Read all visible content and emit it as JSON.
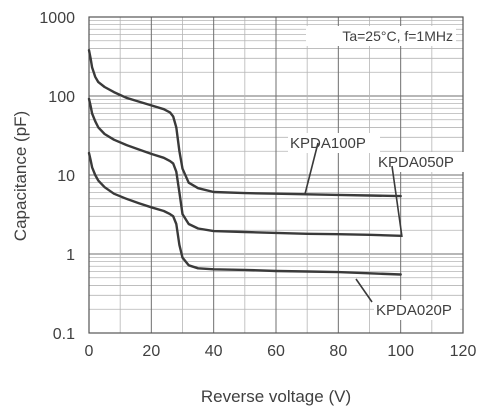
{
  "chart_data": {
    "type": "line",
    "scale": {
      "y": "log10",
      "x": "linear"
    },
    "xlabel": "Reverse voltage  (V)",
    "ylabel": "Capacitance  (pF)",
    "xlim": [
      0,
      120
    ],
    "ylim": [
      0.1,
      1000
    ],
    "x_ticks": [
      "0",
      "20",
      "40",
      "60",
      "80",
      "100",
      "120"
    ],
    "y_ticks": [
      "0.1",
      "1",
      "10",
      "100",
      "1000"
    ],
    "grid": true,
    "annotation": "Ta=25°C, f=1MHz",
    "series": [
      {
        "name": "KPDA100P",
        "points": [
          [
            0,
            380
          ],
          [
            0.5,
            300
          ],
          [
            1,
            230
          ],
          [
            2,
            175
          ],
          [
            3,
            150
          ],
          [
            5,
            130
          ],
          [
            8,
            112
          ],
          [
            12,
            95
          ],
          [
            16,
            85
          ],
          [
            20,
            76
          ],
          [
            24,
            68
          ],
          [
            26,
            62
          ],
          [
            27,
            55
          ],
          [
            28,
            40
          ],
          [
            29,
            20
          ],
          [
            30,
            12
          ],
          [
            32,
            8
          ],
          [
            35,
            6.8
          ],
          [
            40,
            6.1
          ],
          [
            50,
            5.9
          ],
          [
            60,
            5.8
          ],
          [
            70,
            5.7
          ],
          [
            80,
            5.6
          ],
          [
            90,
            5.5
          ],
          [
            100,
            5.4
          ]
        ]
      },
      {
        "name": "KPDA050P",
        "points": [
          [
            0,
            92
          ],
          [
            0.5,
            75
          ],
          [
            1,
            60
          ],
          [
            2,
            48
          ],
          [
            3,
            40
          ],
          [
            5,
            33
          ],
          [
            8,
            28
          ],
          [
            12,
            24
          ],
          [
            16,
            21
          ],
          [
            20,
            18.5
          ],
          [
            24,
            16.5
          ],
          [
            26,
            15
          ],
          [
            27,
            14
          ],
          [
            28,
            11
          ],
          [
            29,
            6
          ],
          [
            30,
            3.2
          ],
          [
            32,
            2.4
          ],
          [
            35,
            2.1
          ],
          [
            40,
            1.95
          ],
          [
            50,
            1.9
          ],
          [
            60,
            1.85
          ],
          [
            70,
            1.8
          ],
          [
            80,
            1.78
          ],
          [
            90,
            1.75
          ],
          [
            100,
            1.7
          ]
        ]
      },
      {
        "name": "KPDA020P",
        "points": [
          [
            0,
            19
          ],
          [
            0.5,
            15.5
          ],
          [
            1,
            12.5
          ],
          [
            2,
            10
          ],
          [
            3,
            8.5
          ],
          [
            5,
            7
          ],
          [
            8,
            5.8
          ],
          [
            12,
            5
          ],
          [
            16,
            4.4
          ],
          [
            20,
            3.9
          ],
          [
            24,
            3.5
          ],
          [
            26,
            3.2
          ],
          [
            27,
            3
          ],
          [
            28,
            2.4
          ],
          [
            29,
            1.3
          ],
          [
            30,
            0.9
          ],
          [
            32,
            0.72
          ],
          [
            35,
            0.66
          ],
          [
            40,
            0.64
          ],
          [
            50,
            0.63
          ],
          [
            60,
            0.61
          ],
          [
            70,
            0.6
          ],
          [
            80,
            0.59
          ],
          [
            90,
            0.57
          ],
          [
            100,
            0.55
          ]
        ]
      }
    ]
  }
}
